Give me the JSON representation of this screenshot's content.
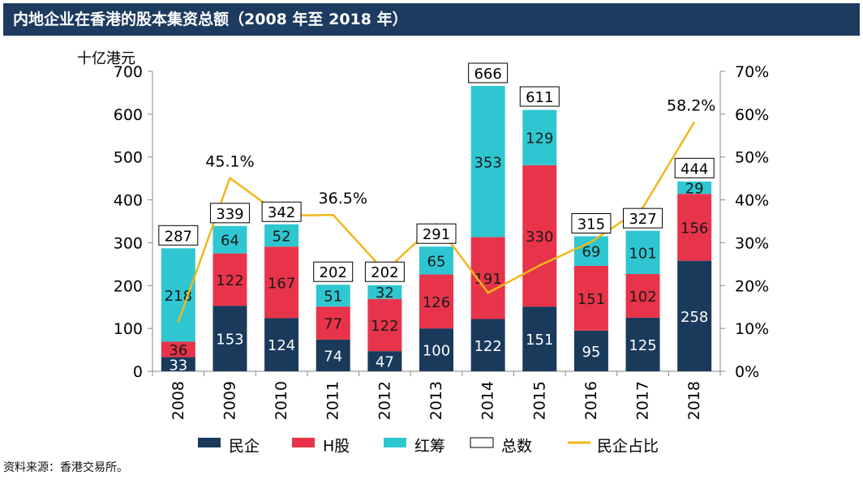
{
  "header": {
    "title": "内地企业在香港的股本集资总额（2008 年至 2018 年）"
  },
  "source": "资料来源：香港交易所。",
  "chart_data": {
    "type": "bar",
    "stacked": true,
    "title": "内地企业在香港的股本集资总额（2008 年至 2018 年）",
    "ylabel": "十亿港元",
    "categories": [
      "2008",
      "2009",
      "2010",
      "2011",
      "2012",
      "2013",
      "2014",
      "2015",
      "2016",
      "2017",
      "2018"
    ],
    "ylim": [
      0,
      700
    ],
    "yticks": [
      0,
      100,
      200,
      300,
      400,
      500,
      600,
      700
    ],
    "y2lim": [
      0,
      70
    ],
    "y2ticks": [
      "0%",
      "10%",
      "20%",
      "30%",
      "40%",
      "50%",
      "60%",
      "70%"
    ],
    "series": [
      {
        "name": "民企",
        "color": "#1a3a5c",
        "values": [
          33,
          153,
          124,
          74,
          47,
          100,
          122,
          151,
          95,
          125,
          258
        ]
      },
      {
        "name": "H股",
        "color": "#e8344a",
        "values": [
          36,
          122,
          167,
          77,
          122,
          126,
          191,
          330,
          151,
          102,
          156
        ]
      },
      {
        "name": "红筹",
        "color": "#2ec7d1",
        "values": [
          218,
          64,
          52,
          51,
          32,
          65,
          353,
          129,
          69,
          101,
          29
        ]
      }
    ],
    "totals": {
      "name": "总数",
      "values": [
        287,
        339,
        342,
        202,
        202,
        291,
        666,
        611,
        315,
        327,
        444
      ]
    },
    "line": {
      "name": "民企占比",
      "axis": "right",
      "color": "#f2b619",
      "values": [
        11.5,
        45.1,
        36.3,
        36.5,
        23.3,
        34.4,
        18.3,
        24.7,
        30.2,
        38.2,
        58.2
      ]
    },
    "line_labels": [
      {
        "index": 1,
        "text": "45.1%"
      },
      {
        "index": 3,
        "text": "36.5%"
      },
      {
        "index": 10,
        "text": "58.2%"
      }
    ],
    "grid": false,
    "legend_position": "bottom"
  }
}
